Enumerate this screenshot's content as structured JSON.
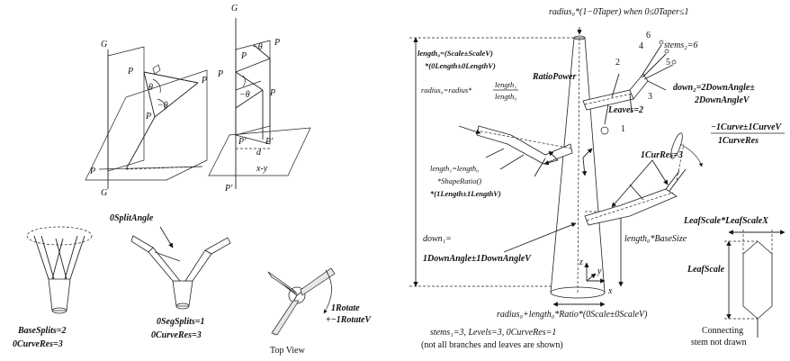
{
  "panel_axes": {
    "g_top_left": "G",
    "g_bottom_left": "G",
    "g_top_right": "G",
    "p1": "P",
    "p2": "P",
    "pb": "P",
    "pa": "P",
    "theta1": "θ",
    "theta_b": "−θ",
    "pc": "P",
    "pb2": "P",
    "theta2a": "−θ",
    "theta2b": "−θ",
    "pa2": "P",
    "p_right": "P",
    "pb_prime": "P′",
    "pa_prime": "P′",
    "d": "d",
    "xy": "x-y",
    "pc_prime": "P′",
    "sub1": "1",
    "sub2": "2",
    "subB": "B",
    "subA": "A",
    "subC": "C"
  },
  "split_panel": {
    "osplit_angle": "0SplitAngle",
    "base_splits": "BaseSplits=2",
    "curve_res_left": "0CurveRes=3",
    "seg_splits": "0SegSplits=1",
    "curve_res_mid": "0CurveRes=3",
    "rotate": "1Rotate",
    "rotate_v": "+−1RotateV",
    "top_view": "Top View"
  },
  "tree_panel": {
    "radius_top": "radius₀*(1−0Taper) when 0≤0Taper≤1",
    "length0_line1": "length₀=(Scale±ScaleV)",
    "length0_line2": "*(0Length±0LengthV)",
    "stems2": "stems₂=6",
    "ratio_power": "RatioPower",
    "radius0_eq": "radius₀=radius*",
    "frac_num": "length₁",
    "frac_den": "length₀",
    "down2_line1": "down₂=2DownAngle±",
    "down2_line2": "2DownAngleV",
    "leaves": "Leaves=2",
    "curve_line1": "−1Curve±1CurveV",
    "curve_line2": "1CurveRes",
    "cur_res": "1CurRes=3",
    "length1_line1": "length₁=length₀",
    "length1_line2": "*ShapeRatio()",
    "length1_line3": "*(1Length±1LengthV)",
    "leaf_scale_top": "LeafScale*LeafScaleX",
    "leaf_scale": "LeafScale",
    "down1_line1": "down₁=",
    "down1_line2": "1DownAngle±1DownAngleV",
    "base_size": "length₀*BaseSize",
    "radius_bottom": "radius₀+length₀*Ratio*(0Scale±0ScaleV)",
    "stems_levels": "stems₁=3, Levels=3, 0CurveRes=1",
    "not_all": "(not all branches and leaves are shown)",
    "connecting_1": "Connecting",
    "connecting_2": "stem not drawn",
    "num1": "1",
    "num2": "2",
    "num3": "3",
    "num4": "4",
    "num5": "5",
    "num6": "6",
    "ax_x": "x",
    "ax_y": "y",
    "ax_z": "z"
  }
}
